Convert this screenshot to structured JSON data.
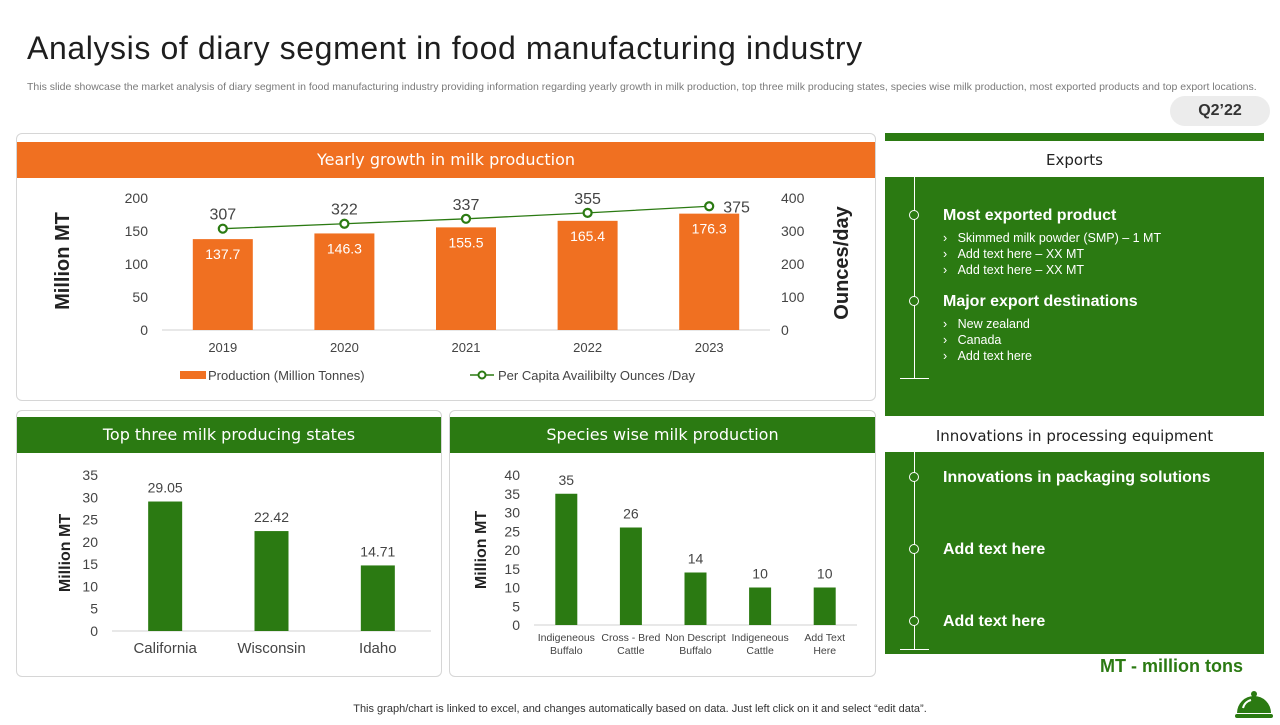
{
  "page": {
    "title": "Analysis of diary segment in food manufacturing industry",
    "subtitle": "This slide showcase the market analysis of diary segment in food manufacturing industry providing information regarding yearly growth in milk production, top three milk producing states, species wise milk production, most exported products and top export locations.",
    "quarter": "Q2’22",
    "mt_note": "MT - million tons",
    "footer": "This graph/chart is linked to excel,  and changes automatically based on data. Just left click on it and select “edit data”.",
    "logo_icon": "food-cloche-icon"
  },
  "colors": {
    "orange": "#f07021",
    "green": "#2b7a12"
  },
  "exports": {
    "heading": "Exports",
    "items": [
      {
        "title": "Most exported product",
        "subs": [
          "Skimmed milk powder (SMP) – 1 MT",
          "Add text here – XX  MT",
          "Add text here – XX  MT"
        ]
      },
      {
        "title": "Major export destinations",
        "subs": [
          "New zealand",
          "Canada",
          "Add text here"
        ]
      }
    ]
  },
  "innovations": {
    "heading": "Innovations in processing equipment",
    "items": [
      "Innovations in packaging solutions",
      "Add text here",
      "Add text here"
    ]
  },
  "chart_data": [
    {
      "type": "bar",
      "title": "Yearly growth in milk production",
      "categories": [
        "2019",
        "2020",
        "2021",
        "2022",
        "2023"
      ],
      "series": [
        {
          "name": "Production (Million Tonnes)",
          "type": "bar",
          "axis": "left",
          "values": [
            137.7,
            146.3,
            155.5,
            165.4,
            176.3
          ]
        },
        {
          "name": "Per Capita Availibilty Ounces /Day",
          "type": "line",
          "axis": "right",
          "values": [
            307,
            322,
            337,
            355,
            375
          ]
        }
      ],
      "ylabel": "Million MT",
      "y2label": "Ounces/day",
      "ylim": [
        0,
        200
      ],
      "y2lim": [
        0,
        400
      ],
      "yticks": [
        "0",
        "50",
        "100",
        "150",
        "200"
      ],
      "y2ticks": [
        "0",
        "100",
        "200",
        "300",
        "400"
      ],
      "legend": "bottom"
    },
    {
      "type": "bar",
      "title": "Top three milk producing states",
      "categories": [
        "California",
        "Wisconsin",
        "Idaho"
      ],
      "values": [
        29.05,
        22.42,
        14.71
      ],
      "ylabel": "Million MT",
      "ylim": [
        0,
        35
      ],
      "yticks": [
        "0",
        "5",
        "10",
        "15",
        "20",
        "25",
        "30",
        "35"
      ]
    },
    {
      "type": "bar",
      "title": "Species wise milk production",
      "categories": [
        [
          "Indigeneous",
          "Buffalo"
        ],
        [
          "Cross - Bred",
          "Cattle"
        ],
        [
          "Non Descript",
          "Buffalo"
        ],
        [
          "Indigeneous",
          "Cattle"
        ],
        [
          "Add Text",
          "Here"
        ]
      ],
      "values": [
        35,
        26,
        14,
        10,
        10
      ],
      "ylabel": "Million MT",
      "ylim": [
        0,
        40
      ],
      "yticks": [
        "0",
        "5",
        "10",
        "15",
        "20",
        "25",
        "30",
        "35",
        "40"
      ]
    }
  ]
}
